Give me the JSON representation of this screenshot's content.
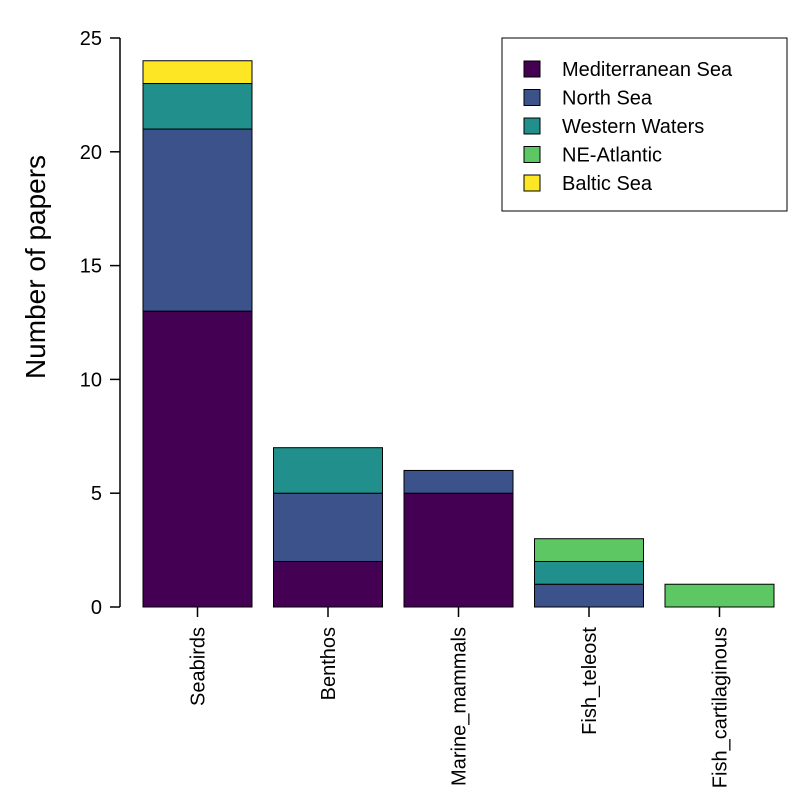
{
  "chart_data": {
    "type": "bar",
    "stacked": true,
    "title": "",
    "xlabel": "",
    "ylabel": "Number of papers",
    "ylim": [
      0,
      25
    ],
    "yticks": [
      0,
      5,
      10,
      15,
      20,
      25
    ],
    "categories": [
      "Seabirds",
      "Benthos",
      "Marine_mammals",
      "Fish_teleost",
      "Fish_cartilaginous"
    ],
    "series": [
      {
        "name": "Mediterranean Sea",
        "color": "#440154",
        "values": [
          13,
          2,
          5,
          0,
          0
        ]
      },
      {
        "name": "North Sea",
        "color": "#3B528B",
        "values": [
          8,
          3,
          1,
          1,
          0
        ]
      },
      {
        "name": "Western Waters",
        "color": "#21908C",
        "values": [
          2,
          2,
          0,
          1,
          0
        ]
      },
      {
        "name": "NE-Atlantic",
        "color": "#5DC863",
        "values": [
          0,
          0,
          0,
          1,
          1
        ]
      },
      {
        "name": "Baltic Sea",
        "color": "#FDE725",
        "values": [
          1,
          0,
          0,
          0,
          0
        ]
      }
    ],
    "legend": "top-right",
    "grid": false
  }
}
